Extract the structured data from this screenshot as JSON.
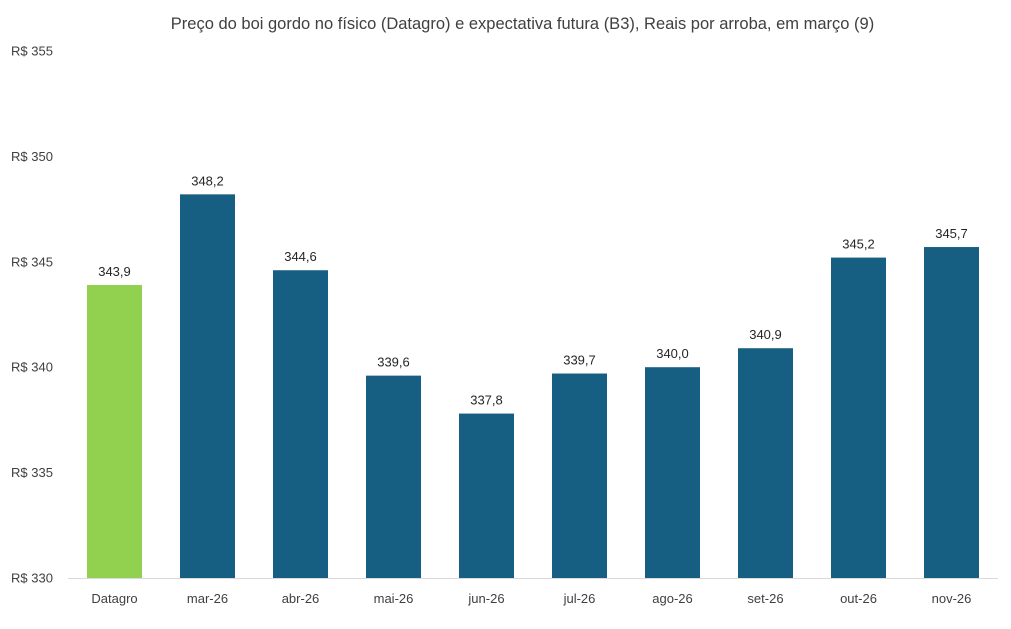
{
  "chart_data": {
    "type": "bar",
    "title": "Preço do boi gordo no físico (Datagro)  e expectativa futura (B3), Reais por arroba, em março (9)",
    "xlabel": "",
    "ylabel": "",
    "ylim": [
      330,
      355
    ],
    "yticks": [
      330,
      335,
      340,
      345,
      350,
      355
    ],
    "ytick_labels": [
      "R$ 330",
      "R$ 335",
      "R$ 340",
      "R$ 345",
      "R$ 350",
      "R$ 355"
    ],
    "categories": [
      "Datagro",
      "mar-26",
      "abr-26",
      "mai-26",
      "jun-26",
      "jul-26",
      "ago-26",
      "set-26",
      "out-26",
      "nov-26"
    ],
    "values": [
      343.9,
      348.2,
      344.6,
      339.6,
      337.8,
      339.7,
      340.0,
      340.9,
      345.2,
      345.7
    ],
    "value_labels": [
      "343,9",
      "348,2",
      "344,6",
      "339,6",
      "337,8",
      "339,7",
      "340,0",
      "340,9",
      "345,2",
      "345,7"
    ],
    "colors": [
      "#92d050",
      "#165e82",
      "#165e82",
      "#165e82",
      "#165e82",
      "#165e82",
      "#165e82",
      "#165e82",
      "#165e82",
      "#165e82"
    ],
    "grid": false,
    "legend": "none"
  }
}
